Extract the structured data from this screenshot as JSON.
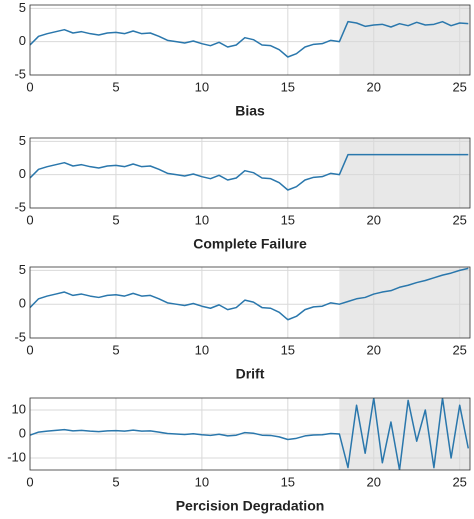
{
  "chart_data": [
    {
      "type": "line",
      "xlabel": "Bias",
      "x": [
        0,
        0.5,
        1,
        1.5,
        2,
        2.5,
        3,
        3.5,
        4,
        4.5,
        5,
        5.5,
        6,
        6.5,
        7,
        7.5,
        8,
        8.5,
        9,
        9.5,
        10,
        10.5,
        11,
        11.5,
        12,
        12.5,
        13,
        13.5,
        14,
        14.5,
        15,
        15.5,
        16,
        16.5,
        17,
        17.5,
        18,
        18.5,
        19,
        19.5,
        20,
        20.5,
        21,
        21.5,
        22,
        22.5,
        23,
        23.5,
        24,
        24.5,
        25,
        25.5
      ],
      "values": [
        -0.5,
        0.8,
        1.2,
        1.5,
        1.8,
        1.3,
        1.5,
        1.2,
        1.0,
        1.3,
        1.4,
        1.2,
        1.6,
        1.2,
        1.3,
        0.8,
        0.2,
        0.0,
        -0.2,
        0.1,
        -0.3,
        -0.6,
        -0.1,
        -0.8,
        -0.5,
        0.6,
        0.3,
        -0.5,
        -0.6,
        -1.2,
        -2.3,
        -1.8,
        -0.8,
        -0.4,
        -0.3,
        0.2,
        0.0,
        3.0,
        2.8,
        2.3,
        2.5,
        2.6,
        2.2,
        2.7,
        2.4,
        2.9,
        2.5,
        2.6,
        3.0,
        2.4,
        2.8,
        2.7
      ],
      "color": "#2a77ac",
      "shaded_region": [
        18,
        25.6
      ],
      "xlim": [
        0,
        25.6
      ],
      "ylim": [
        -5,
        5.5
      ],
      "xticks": [
        0,
        5,
        10,
        15,
        20,
        25
      ],
      "yticks": [
        -5,
        0,
        5
      ],
      "grid": true
    },
    {
      "type": "line",
      "xlabel": "Complete Failure",
      "x": [
        0,
        0.5,
        1,
        1.5,
        2,
        2.5,
        3,
        3.5,
        4,
        4.5,
        5,
        5.5,
        6,
        6.5,
        7,
        7.5,
        8,
        8.5,
        9,
        9.5,
        10,
        10.5,
        11,
        11.5,
        12,
        12.5,
        13,
        13.5,
        14,
        14.5,
        15,
        15.5,
        16,
        16.5,
        17,
        17.5,
        18,
        18.5,
        19,
        19.5,
        20,
        20.5,
        21,
        21.5,
        22,
        22.5,
        23,
        23.5,
        24,
        24.5,
        25,
        25.5
      ],
      "values": [
        -0.5,
        0.8,
        1.2,
        1.5,
        1.8,
        1.3,
        1.5,
        1.2,
        1.0,
        1.3,
        1.4,
        1.2,
        1.6,
        1.2,
        1.3,
        0.8,
        0.2,
        0.0,
        -0.2,
        0.1,
        -0.3,
        -0.6,
        -0.1,
        -0.8,
        -0.5,
        0.6,
        0.3,
        -0.5,
        -0.6,
        -1.2,
        -2.3,
        -1.8,
        -0.8,
        -0.4,
        -0.3,
        0.2,
        0.0,
        3,
        3,
        3,
        3,
        3,
        3,
        3,
        3,
        3,
        3,
        3,
        3,
        3,
        3,
        3
      ],
      "color": "#2a77ac",
      "shaded_region": [
        18,
        25.6
      ],
      "xlim": [
        0,
        25.6
      ],
      "ylim": [
        -5,
        5.5
      ],
      "xticks": [
        0,
        5,
        10,
        15,
        20,
        25
      ],
      "yticks": [
        -5,
        0,
        5
      ],
      "grid": true
    },
    {
      "type": "line",
      "xlabel": "Drift",
      "x": [
        0,
        0.5,
        1,
        1.5,
        2,
        2.5,
        3,
        3.5,
        4,
        4.5,
        5,
        5.5,
        6,
        6.5,
        7,
        7.5,
        8,
        8.5,
        9,
        9.5,
        10,
        10.5,
        11,
        11.5,
        12,
        12.5,
        13,
        13.5,
        14,
        14.5,
        15,
        15.5,
        16,
        16.5,
        17,
        17.5,
        18,
        18.5,
        19,
        19.5,
        20,
        20.5,
        21,
        21.5,
        22,
        22.5,
        23,
        23.5,
        24,
        24.5,
        25,
        25.5
      ],
      "values": [
        -0.5,
        0.8,
        1.2,
        1.5,
        1.8,
        1.3,
        1.5,
        1.2,
        1.0,
        1.3,
        1.4,
        1.2,
        1.6,
        1.2,
        1.3,
        0.8,
        0.2,
        0.0,
        -0.2,
        0.1,
        -0.3,
        -0.6,
        -0.1,
        -0.8,
        -0.5,
        0.6,
        0.3,
        -0.5,
        -0.6,
        -1.2,
        -2.3,
        -1.8,
        -0.8,
        -0.4,
        -0.3,
        0.2,
        0.0,
        0.4,
        0.8,
        1.0,
        1.5,
        1.8,
        2.0,
        2.5,
        2.8,
        3.2,
        3.5,
        3.9,
        4.3,
        4.6,
        5.0,
        5.3
      ],
      "color": "#2a77ac",
      "shaded_region": [
        18,
        25.6
      ],
      "xlim": [
        0,
        25.6
      ],
      "ylim": [
        -5,
        5.5
      ],
      "xticks": [
        0,
        5,
        10,
        15,
        20,
        25
      ],
      "yticks": [
        -5,
        0,
        5
      ],
      "grid": true
    },
    {
      "type": "line",
      "xlabel": "Percision Degradation",
      "x": [
        0,
        0.5,
        1,
        1.5,
        2,
        2.5,
        3,
        3.5,
        4,
        4.5,
        5,
        5.5,
        6,
        6.5,
        7,
        7.5,
        8,
        8.5,
        9,
        9.5,
        10,
        10.5,
        11,
        11.5,
        12,
        12.5,
        13,
        13.5,
        14,
        14.5,
        15,
        15.5,
        16,
        16.5,
        17,
        17.5,
        18,
        18.5,
        19,
        19.5,
        20,
        20.5,
        21,
        21.5,
        22,
        22.5,
        23,
        23.5,
        24,
        24.5,
        25,
        25.5
      ],
      "values": [
        -0.5,
        0.8,
        1.2,
        1.5,
        1.8,
        1.3,
        1.5,
        1.2,
        1.0,
        1.3,
        1.4,
        1.2,
        1.6,
        1.2,
        1.3,
        0.8,
        0.2,
        0.0,
        -0.2,
        0.1,
        -0.3,
        -0.6,
        -0.1,
        -0.8,
        -0.5,
        0.6,
        0.3,
        -0.5,
        -0.6,
        -1.2,
        -2.3,
        -1.8,
        -0.8,
        -0.4,
        -0.3,
        0.2,
        0.0,
        -14,
        12,
        -8,
        15,
        -12,
        5,
        -15,
        14,
        -3,
        10,
        -14,
        15,
        -10,
        12,
        -6
      ],
      "color": "#2a77ac",
      "shaded_region": [
        18,
        25.6
      ],
      "xlim": [
        0,
        25.6
      ],
      "ylim": [
        -15,
        15
      ],
      "xticks": [
        0,
        5,
        10,
        15,
        20,
        25
      ],
      "yticks": [
        -10,
        0,
        10
      ],
      "grid": true
    }
  ]
}
